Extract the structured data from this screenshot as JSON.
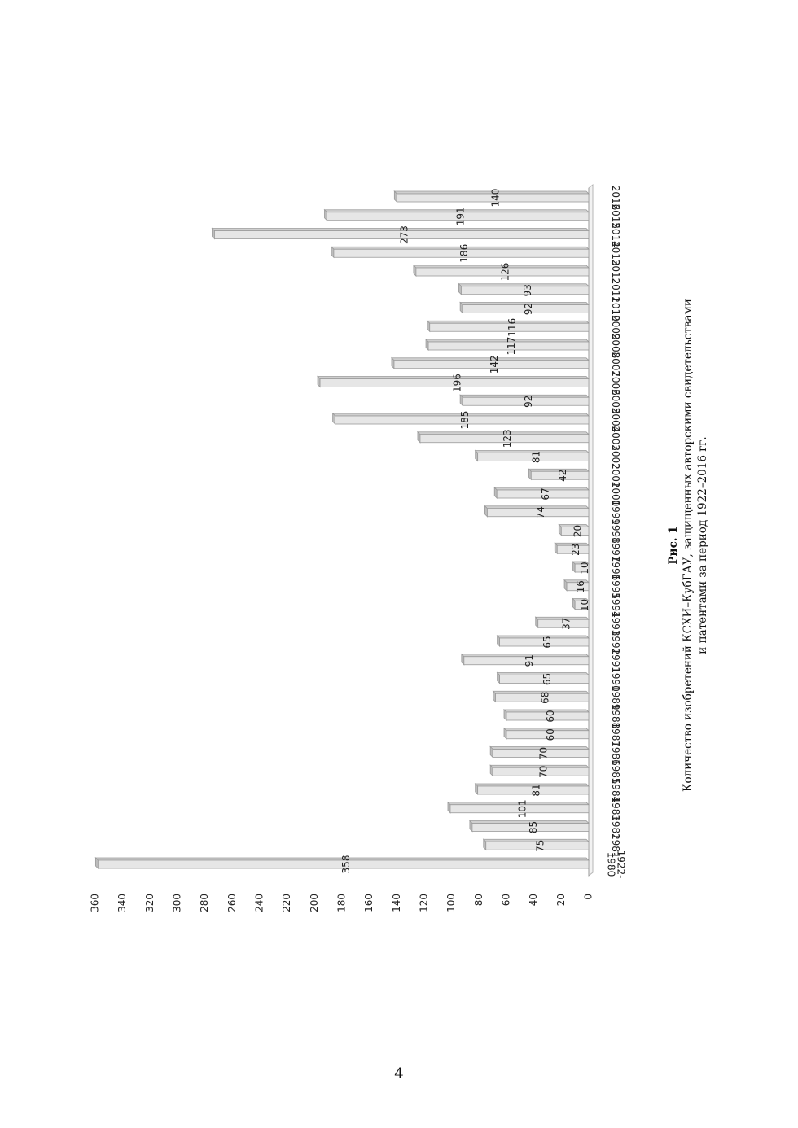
{
  "caption": {
    "label": "Рис. 1",
    "line1": "Количество изобретений КСХИ–КубГАУ, защищенных авторскими свидетельствами",
    "line2": "и патентами за период 1922–2016 гг."
  },
  "page_number": "4",
  "chart_data": {
    "type": "bar",
    "orientation": "rotated-90",
    "categories": [
      "1922-1980",
      "1981",
      "1982",
      "1983",
      "1984",
      "1985",
      "1986",
      "1987",
      "1988",
      "1989",
      "1990",
      "1991",
      "1992",
      "1993",
      "1994",
      "1995",
      "1996",
      "1997",
      "1998",
      "1999",
      "2000",
      "2001",
      "2002",
      "2003",
      "2004",
      "2005",
      "2006",
      "2007",
      "2008",
      "2009",
      "2010",
      "2011",
      "2012",
      "2013",
      "2014",
      "2015",
      "2016"
    ],
    "category_display": [
      [
        "1922-",
        "1980"
      ],
      [
        "1981"
      ],
      [
        "1982"
      ],
      [
        "1983"
      ],
      [
        "1984"
      ],
      [
        "1985"
      ],
      [
        "1986"
      ],
      [
        "1987"
      ],
      [
        "1988"
      ],
      [
        "1989"
      ],
      [
        "1990"
      ],
      [
        "1991"
      ],
      [
        "1992"
      ],
      [
        "1993"
      ],
      [
        "1994"
      ],
      [
        "1995"
      ],
      [
        "1996"
      ],
      [
        "1997"
      ],
      [
        "1998"
      ],
      [
        "1999"
      ],
      [
        "2000"
      ],
      [
        "2001"
      ],
      [
        "2002"
      ],
      [
        "2003"
      ],
      [
        "2004"
      ],
      [
        "2005"
      ],
      [
        "2006"
      ],
      [
        "2007"
      ],
      [
        "2008"
      ],
      [
        "2009"
      ],
      [
        "2010"
      ],
      [
        "2011"
      ],
      [
        "2012"
      ],
      [
        "2013"
      ],
      [
        "2014"
      ],
      [
        "2015"
      ],
      [
        "2016"
      ]
    ],
    "values": [
      358,
      75,
      85,
      101,
      81,
      70,
      70,
      60,
      60,
      68,
      65,
      91,
      65,
      37,
      10,
      16,
      10,
      23,
      20,
      74,
      67,
      42,
      81,
      123,
      185,
      92,
      196,
      142,
      117,
      116,
      92,
      93,
      126,
      186,
      273,
      191,
      140
    ],
    "ylim": [
      0,
      360
    ],
    "yticks": [
      "0",
      "20",
      "40",
      "60",
      "80",
      "100",
      "120",
      "140",
      "160",
      "180",
      "200",
      "220",
      "240",
      "260",
      "280",
      "300",
      "320",
      "340",
      "360"
    ],
    "grid": false,
    "legend": "none",
    "bar_color": "#e6e6e6",
    "bar_edge_color": "#9a9a9a"
  }
}
